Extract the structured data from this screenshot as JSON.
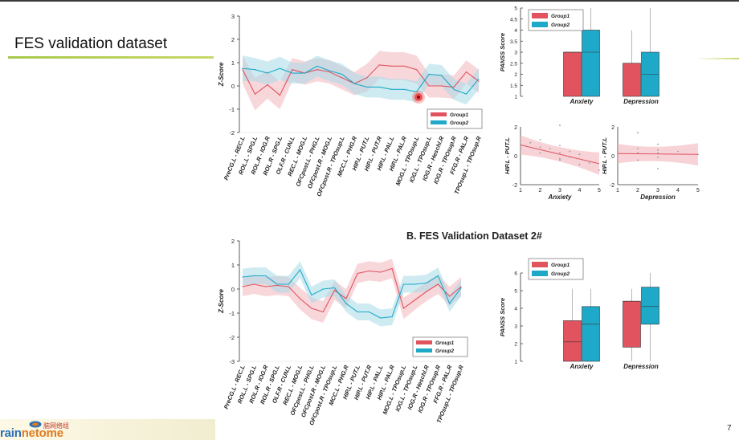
{
  "slide": {
    "title": "FES validation dataset",
    "section_b_title": "B. FES Validation Dataset 2#",
    "page_number": "7",
    "logo": {
      "cn_text": "脑网络组",
      "text_part1": "rain",
      "text_part2": "netome"
    }
  },
  "colors": {
    "group1": "#e0535f",
    "group2": "#1fa9c9",
    "group1_band": "#f2b6bd",
    "group2_band": "#a8dbe8"
  },
  "chart_data": [
    {
      "id": "line-a",
      "type": "line",
      "ylabel": "Z-Score",
      "ylim": [
        -2,
        3
      ],
      "yticks": [
        -2,
        -1,
        0,
        1,
        2,
        3
      ],
      "categories": [
        "PreCG.L - REC.L",
        "ROL.L - SPG.L",
        "ROL.R - IOG.R",
        "ROL.R - SPG.L",
        "OLF.R - CUN.L",
        "REC.L - MOG.L",
        "OFCpost.L - PHG.L",
        "OFCpost.R - MOG.L",
        "OFCpost.R - TPOsup.L",
        "MCC.L - PHG.R",
        "HIP.L - PUT.L",
        "HIP.L - PUT.R",
        "HIP.L - PAL.L",
        "HIP.L - PAL.R",
        "MOG.L - TPOsup.L",
        "IOG.L - TPOsup.L",
        "IOG.R - Heschl.R",
        "IOG.R - TPOsup.R",
        "FFG.R - PAL.R",
        "TPOsup.L - TPOsup.R"
      ],
      "legend": [
        "Group1",
        "Group2"
      ],
      "series": [
        {
          "name": "Group1",
          "values": [
            0.7,
            -0.35,
            0.05,
            -0.4,
            0.7,
            0.55,
            0.7,
            0.6,
            0.35,
            0.1,
            0.35,
            0.9,
            0.85,
            0.85,
            0.7,
            0.0,
            0.0,
            -0.05,
            0.6,
            0.2
          ],
          "band": [
            0.6,
            0.7,
            0.6,
            0.6,
            0.5,
            0.5,
            0.5,
            0.5,
            0.5,
            0.5,
            0.6,
            0.6,
            0.6,
            0.6,
            0.6,
            0.5,
            0.5,
            0.5,
            0.5,
            0.5
          ]
        },
        {
          "name": "Group2",
          "values": [
            0.75,
            0.7,
            0.55,
            0.75,
            0.55,
            0.55,
            0.85,
            0.65,
            0.5,
            0.1,
            -0.05,
            -0.05,
            -0.15,
            -0.15,
            -0.25,
            0.5,
            0.45,
            -0.15,
            -0.35,
            0.3
          ],
          "band": [
            0.55,
            0.5,
            0.5,
            0.5,
            0.45,
            0.45,
            0.45,
            0.45,
            0.45,
            0.45,
            0.45,
            0.45,
            0.45,
            0.45,
            0.45,
            0.45,
            0.45,
            0.45,
            0.45,
            0.45
          ]
        }
      ]
    },
    {
      "id": "line-b",
      "type": "line",
      "ylabel": "Z-Score",
      "ylim": [
        -3,
        2
      ],
      "yticks": [
        -3,
        -2,
        -1,
        0,
        1,
        2
      ],
      "categories": [
        "PreCG.L - REC.L",
        "ROL.L - SPG.L",
        "ROL.R - IOG.R",
        "ROL.R - SPG.L",
        "OLF.R - CUN.L",
        "REC.L - MOG.L",
        "OFCpost.L - PHG.L",
        "OFCpost.R - MOG.L",
        "OFCpost.R - TPOsup.L",
        "MCC.L - PHG.R",
        "HIP.L - PUT.L",
        "HIP.L - PUT.R",
        "HIP.L - PAL.L",
        "HIP.L - PAL.R",
        "MOG.L - TPOsup.L",
        "IOG.L - TPOsup.L",
        "IOG.R - Heschl.R",
        "IOG.R - TPOsup.R",
        "FFG.R - PAL.R",
        "TPOsup.L - TPOsup.R"
      ],
      "legend": [
        "Group1",
        "Group2"
      ],
      "series": [
        {
          "name": "Group1",
          "values": [
            0.1,
            0.2,
            0.1,
            0.15,
            0.1,
            -0.4,
            -0.8,
            -0.95,
            -0.05,
            -0.4,
            0.65,
            0.75,
            0.7,
            0.85,
            -0.8,
            -0.45,
            -0.1,
            0.2,
            -0.3,
            0.1
          ],
          "band": [
            0.4,
            0.4,
            0.4,
            0.4,
            0.4,
            0.45,
            0.45,
            0.45,
            0.4,
            0.4,
            0.4,
            0.4,
            0.4,
            0.4,
            0.45,
            0.4,
            0.4,
            0.4,
            0.4,
            0.4
          ]
        },
        {
          "name": "Group2",
          "values": [
            0.5,
            0.55,
            0.55,
            0.2,
            0.2,
            0.8,
            -0.25,
            0.0,
            0.05,
            -0.6,
            -0.95,
            -0.95,
            -1.2,
            -1.15,
            0.2,
            0.2,
            0.25,
            0.55,
            -0.6,
            0.05
          ],
          "band": [
            0.35,
            0.35,
            0.35,
            0.35,
            0.35,
            0.35,
            0.35,
            0.35,
            0.35,
            0.35,
            0.35,
            0.35,
            0.35,
            0.35,
            0.35,
            0.35,
            0.35,
            0.35,
            0.35,
            0.35
          ]
        }
      ]
    },
    {
      "id": "box-a",
      "type": "bar",
      "subtype": "boxplot",
      "ylabel": "PANSS Score",
      "ylim": [
        1,
        5
      ],
      "yticks": [
        1,
        1.5,
        2,
        2.5,
        3,
        3.5,
        4,
        4.5,
        5
      ],
      "categories": [
        "Anxiety",
        "Depression"
      ],
      "legend": [
        "Group1",
        "Group2"
      ],
      "series": [
        {
          "name": "Group1",
          "boxes": [
            {
              "min": 1,
              "q1": 1,
              "median": 3,
              "q3": 3,
              "max": 3
            },
            {
              "min": 1,
              "q1": 1,
              "median": 2.5,
              "q3": 2.5,
              "max": 4
            }
          ]
        },
        {
          "name": "Group2",
          "boxes": [
            {
              "min": 1,
              "q1": 1,
              "median": 3,
              "q3": 4,
              "max": 5
            },
            {
              "min": 1,
              "q1": 1,
              "median": 2,
              "q3": 3,
              "max": 5
            }
          ]
        }
      ]
    },
    {
      "id": "box-b",
      "type": "bar",
      "subtype": "boxplot",
      "ylabel": "PANSS Score",
      "ylim": [
        1,
        6
      ],
      "yticks": [
        1,
        2,
        3,
        4,
        5,
        6
      ],
      "categories": [
        "Anxiety",
        "Depression"
      ],
      "legend": [
        "Group1",
        "Group2"
      ],
      "series": [
        {
          "name": "Group1",
          "boxes": [
            {
              "min": 1,
              "q1": 1,
              "median": 2.1,
              "q3": 3.3,
              "max": 5.1
            },
            {
              "min": 1,
              "q1": 1.8,
              "median": 4.4,
              "q3": 4.4,
              "max": 5.1
            }
          ]
        },
        {
          "name": "Group2",
          "boxes": [
            {
              "min": 1,
              "q1": 1,
              "median": 3.1,
              "q3": 4.1,
              "max": 5.1
            },
            {
              "min": 1,
              "q1": 3.1,
              "median": 4.1,
              "q3": 5.2,
              "max": 6
            }
          ]
        }
      ]
    },
    {
      "id": "scatter-anx",
      "type": "scatter",
      "ylabel": "HIP.L - PUT.L",
      "xlabel": "Anxiety",
      "xlim": [
        1,
        5
      ],
      "ylim": [
        -2,
        2
      ],
      "xticks": [
        1,
        2,
        3,
        4,
        5
      ],
      "yticks": [
        -2,
        0,
        2
      ],
      "points": [
        [
          1,
          0.5
        ],
        [
          1.5,
          0.9
        ],
        [
          2,
          0.2
        ],
        [
          2,
          0.6
        ],
        [
          2.5,
          0.5
        ],
        [
          3,
          0.2
        ],
        [
          3,
          -0.3
        ],
        [
          3,
          0.7
        ],
        [
          3,
          -0.2
        ],
        [
          3,
          2.1
        ],
        [
          3.5,
          -0.1
        ],
        [
          4,
          -0.6
        ],
        [
          4,
          0.1
        ],
        [
          4.5,
          -0.5
        ],
        [
          5,
          -1.0
        ],
        [
          2,
          1.1
        ],
        [
          3.5,
          0.3
        ]
      ],
      "fit": {
        "x": [
          1,
          5
        ],
        "y": [
          0.75,
          -0.55
        ]
      }
    },
    {
      "id": "scatter-dep",
      "type": "scatter",
      "ylabel": "HIP.L - PUT.L",
      "xlabel": "Depression",
      "xlim": [
        1,
        5
      ],
      "ylim": [
        -2,
        2
      ],
      "xticks": [
        1,
        2,
        3,
        4,
        5
      ],
      "yticks": [
        -2,
        0,
        2
      ],
      "points": [
        [
          1,
          0.3
        ],
        [
          1,
          -0.4
        ],
        [
          2,
          0.2
        ],
        [
          2,
          -0.3
        ],
        [
          2,
          1.6
        ],
        [
          2,
          0.5
        ],
        [
          3,
          0.4
        ],
        [
          3,
          -0.1
        ],
        [
          3,
          0.8
        ],
        [
          3,
          -0.9
        ],
        [
          3,
          0.2
        ],
        [
          4,
          0.3
        ],
        [
          5,
          0.1
        ]
      ],
      "fit": {
        "x": [
          1,
          5
        ],
        "y": [
          0.15,
          0.1
        ]
      }
    }
  ]
}
